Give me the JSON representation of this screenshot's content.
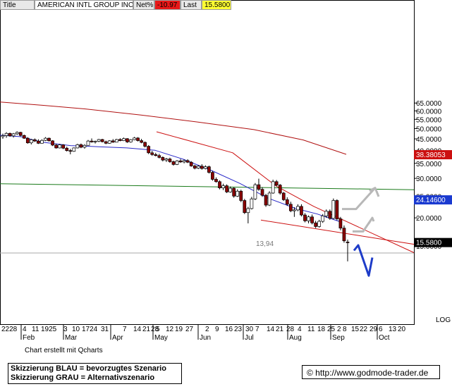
{
  "header": {
    "title_label": "Title",
    "company": "AMERICAN INTL GROUP INC",
    "net_label": "Net%",
    "net_value": "-10.97",
    "last_label": "Last",
    "last_value": "15.5800"
  },
  "footer": {
    "credit": "Chart erstellt mit Qcharts",
    "legend_blue": "Skizzierung BLAU = bevorzugtes Szenario",
    "legend_grey": "Skizzierung GRAU = Alternativszenario",
    "url": "© http://www.godmode-trader.de"
  },
  "colors": {
    "up": "#ffffff",
    "down": "#8b0000",
    "ma_blue": "#2828c8",
    "ma_red": "#b01010",
    "trend_red": "#cc1010",
    "support_green": "#1a7a1a",
    "scenario_blue": "#1e3cc8",
    "scenario_grey": "#b8b8b8",
    "tag_red": "#cc1010",
    "tag_blue": "#1a3ad0",
    "tag_black": "#000000"
  },
  "chart_data": {
    "type": "candlestick",
    "scale": "log",
    "ylabel_note": "LOG",
    "y_ticks": [
      "65.0000",
      "60.0000",
      "55.0000",
      "50.0000",
      "45.0000",
      "40.0000",
      "35.0000",
      "30.0000",
      "25.0000",
      "20.0000",
      "15.0000"
    ],
    "x_day_ticks": [
      "2228",
      "4",
      "11",
      "1925",
      "3",
      "10",
      "1724",
      "31",
      "7",
      "14",
      "21",
      "28",
      "5",
      "12",
      "19",
      "27",
      "2",
      "9",
      "16",
      "23",
      "30",
      "7",
      "14",
      "21",
      "28",
      "4",
      "11",
      "18",
      "25",
      "2",
      "8",
      "15",
      "22",
      "29",
      "6",
      "13",
      "20"
    ],
    "x_month_labels": [
      "Feb",
      "Mar",
      "Apr",
      "May",
      "Jun",
      "Jul",
      "Aug",
      "Sep",
      "Oct"
    ],
    "price_tags": [
      {
        "label": "38.38053",
        "value": 38.38053,
        "color": "red"
      },
      {
        "label": "24.14600",
        "value": 24.146,
        "color": "blue"
      },
      {
        "label": "15.5800",
        "value": 15.58,
        "color": "black"
      }
    ],
    "annotation": {
      "label": "13,94",
      "value": 13.94
    },
    "moving_average_200": [
      [
        0,
        65.7
      ],
      [
        60,
        63.5
      ],
      [
        120,
        61.2
      ],
      [
        200,
        57.5
      ],
      [
        280,
        53.5
      ],
      [
        360,
        49.5
      ],
      [
        430,
        44.5
      ],
      [
        491,
        38.4
      ]
    ],
    "moving_average_50": [
      [
        0,
        46.7
      ],
      [
        30,
        46.0
      ],
      [
        60,
        43.5
      ],
      [
        100,
        42.0
      ],
      [
        140,
        41.5
      ],
      [
        180,
        41.0
      ],
      [
        220,
        40.0
      ],
      [
        260,
        36.5
      ],
      [
        300,
        32.5
      ],
      [
        340,
        28.5
      ],
      [
        380,
        24.5
      ],
      [
        420,
        22.0
      ],
      [
        450,
        20.8
      ],
      [
        470,
        19.8
      ],
      [
        485,
        19.1
      ]
    ],
    "resistance_line": [
      [
        222,
        48.4
      ],
      [
        330,
        39.0
      ],
      [
        391,
        27.8
      ],
      [
        445,
        22.5
      ],
      [
        587,
        14.0
      ]
    ],
    "support_line": [
      [
        370,
        19.55
      ],
      [
        587,
        15.25
      ]
    ],
    "horizontal_green": [
      [
        0,
        28.4
      ],
      [
        587,
        26.7
      ]
    ],
    "scenario_blue": [
      [
        502,
        14.3
      ],
      [
        508,
        15.1
      ],
      [
        523,
        11.05
      ],
      [
        528,
        13.3
      ]
    ],
    "scenario_grey": [
      [
        500,
        17.4
      ],
      [
        515,
        17.4
      ],
      [
        528,
        20.0
      ],
      [
        523,
        18.9
      ],
      [
        528,
        20.0
      ],
      [
        530,
        19.3
      ]
    ],
    "scenario_grey_2": [
      [
        485,
        21.9
      ],
      [
        505,
        21.9
      ],
      [
        532,
        27.2
      ],
      [
        525,
        26.5
      ],
      [
        532,
        27.2
      ],
      [
        537,
        24.9
      ]
    ],
    "candles": [
      {
        "o": 46.0,
        "h": 47.5,
        "l": 45.0,
        "c": 46.5
      },
      {
        "o": 46.5,
        "h": 48.2,
        "l": 45.5,
        "c": 47.6
      },
      {
        "o": 47.6,
        "h": 48.0,
        "l": 46.0,
        "c": 46.4
      },
      {
        "o": 46.4,
        "h": 47.8,
        "l": 45.6,
        "c": 47.4
      },
      {
        "o": 47.4,
        "h": 48.6,
        "l": 46.8,
        "c": 48.1
      },
      {
        "o": 48.1,
        "h": 48.4,
        "l": 46.2,
        "c": 46.6
      },
      {
        "o": 46.6,
        "h": 47.0,
        "l": 45.0,
        "c": 45.3
      },
      {
        "o": 45.3,
        "h": 45.8,
        "l": 42.8,
        "c": 43.2
      },
      {
        "o": 43.2,
        "h": 45.0,
        "l": 42.5,
        "c": 44.6
      },
      {
        "o": 44.6,
        "h": 45.2,
        "l": 43.6,
        "c": 44.0
      },
      {
        "o": 44.0,
        "h": 44.8,
        "l": 42.7,
        "c": 43.0
      },
      {
        "o": 43.0,
        "h": 44.8,
        "l": 42.9,
        "c": 44.3
      },
      {
        "o": 44.3,
        "h": 45.8,
        "l": 44.0,
        "c": 45.3
      },
      {
        "o": 45.3,
        "h": 45.6,
        "l": 43.8,
        "c": 44.1
      },
      {
        "o": 44.1,
        "h": 44.4,
        "l": 41.8,
        "c": 42.2
      },
      {
        "o": 42.2,
        "h": 42.8,
        "l": 40.7,
        "c": 41.0
      },
      {
        "o": 41.0,
        "h": 42.7,
        "l": 40.8,
        "c": 42.3
      },
      {
        "o": 42.3,
        "h": 42.6,
        "l": 40.5,
        "c": 40.9
      },
      {
        "o": 40.9,
        "h": 41.5,
        "l": 39.5,
        "c": 39.9
      },
      {
        "o": 39.9,
        "h": 40.6,
        "l": 38.4,
        "c": 39.6
      },
      {
        "o": 39.6,
        "h": 41.2,
        "l": 39.4,
        "c": 41.0
      },
      {
        "o": 41.0,
        "h": 42.8,
        "l": 40.8,
        "c": 42.4
      },
      {
        "o": 42.4,
        "h": 42.9,
        "l": 40.9,
        "c": 41.3
      },
      {
        "o": 41.3,
        "h": 42.6,
        "l": 40.7,
        "c": 42.1
      },
      {
        "o": 42.1,
        "h": 44.5,
        "l": 42.0,
        "c": 44.0
      },
      {
        "o": 44.0,
        "h": 45.2,
        "l": 43.3,
        "c": 43.6
      },
      {
        "o": 43.6,
        "h": 44.2,
        "l": 42.9,
        "c": 43.9
      },
      {
        "o": 43.9,
        "h": 45.0,
        "l": 43.5,
        "c": 44.7
      },
      {
        "o": 44.7,
        "h": 45.0,
        "l": 43.4,
        "c": 43.7
      },
      {
        "o": 43.7,
        "h": 44.2,
        "l": 42.6,
        "c": 43.0
      },
      {
        "o": 43.0,
        "h": 44.4,
        "l": 42.8,
        "c": 44.1
      },
      {
        "o": 44.1,
        "h": 44.9,
        "l": 43.2,
        "c": 43.5
      },
      {
        "o": 43.5,
        "h": 45.0,
        "l": 43.4,
        "c": 44.7
      },
      {
        "o": 44.7,
        "h": 45.3,
        "l": 43.9,
        "c": 44.2
      },
      {
        "o": 44.2,
        "h": 45.6,
        "l": 44.0,
        "c": 45.1
      },
      {
        "o": 45.1,
        "h": 45.3,
        "l": 43.2,
        "c": 43.6
      },
      {
        "o": 43.6,
        "h": 44.9,
        "l": 43.3,
        "c": 44.6
      },
      {
        "o": 44.6,
        "h": 45.9,
        "l": 44.4,
        "c": 45.4
      },
      {
        "o": 45.4,
        "h": 45.8,
        "l": 43.8,
        "c": 44.2
      },
      {
        "o": 44.2,
        "h": 45.0,
        "l": 43.0,
        "c": 43.4
      },
      {
        "o": 43.4,
        "h": 43.8,
        "l": 41.2,
        "c": 41.7
      },
      {
        "o": 41.7,
        "h": 42.2,
        "l": 38.5,
        "c": 39.0
      },
      {
        "o": 39.0,
        "h": 39.8,
        "l": 37.8,
        "c": 38.3
      },
      {
        "o": 38.3,
        "h": 39.0,
        "l": 37.6,
        "c": 37.9
      },
      {
        "o": 37.9,
        "h": 38.6,
        "l": 36.8,
        "c": 37.2
      },
      {
        "o": 37.2,
        "h": 37.6,
        "l": 35.7,
        "c": 36.2
      },
      {
        "o": 36.2,
        "h": 37.0,
        "l": 35.5,
        "c": 36.6
      },
      {
        "o": 36.6,
        "h": 37.1,
        "l": 35.2,
        "c": 35.6
      },
      {
        "o": 35.6,
        "h": 36.0,
        "l": 34.2,
        "c": 34.6
      },
      {
        "o": 34.6,
        "h": 36.2,
        "l": 34.4,
        "c": 35.9
      },
      {
        "o": 35.9,
        "h": 36.6,
        "l": 35.2,
        "c": 35.5
      },
      {
        "o": 35.5,
        "h": 36.4,
        "l": 35.0,
        "c": 36.0
      },
      {
        "o": 36.0,
        "h": 36.5,
        "l": 35.1,
        "c": 35.4
      },
      {
        "o": 35.4,
        "h": 35.8,
        "l": 33.8,
        "c": 34.1
      },
      {
        "o": 34.1,
        "h": 34.5,
        "l": 32.9,
        "c": 33.3
      },
      {
        "o": 33.3,
        "h": 34.4,
        "l": 33.0,
        "c": 34.0
      },
      {
        "o": 34.0,
        "h": 34.7,
        "l": 32.8,
        "c": 33.2
      },
      {
        "o": 33.2,
        "h": 34.3,
        "l": 32.9,
        "c": 33.8
      },
      {
        "o": 33.8,
        "h": 34.2,
        "l": 31.5,
        "c": 31.9
      },
      {
        "o": 31.9,
        "h": 32.4,
        "l": 29.3,
        "c": 29.7
      },
      {
        "o": 29.7,
        "h": 30.3,
        "l": 28.7,
        "c": 29.0
      },
      {
        "o": 29.0,
        "h": 29.4,
        "l": 26.8,
        "c": 27.2
      },
      {
        "o": 27.2,
        "h": 28.4,
        "l": 26.6,
        "c": 27.8
      },
      {
        "o": 27.8,
        "h": 28.2,
        "l": 25.8,
        "c": 26.1
      },
      {
        "o": 26.1,
        "h": 27.6,
        "l": 25.9,
        "c": 27.1
      },
      {
        "o": 27.1,
        "h": 27.4,
        "l": 24.6,
        "c": 25.0
      },
      {
        "o": 25.0,
        "h": 26.8,
        "l": 24.8,
        "c": 26.3
      },
      {
        "o": 26.3,
        "h": 26.7,
        "l": 23.5,
        "c": 23.9
      },
      {
        "o": 23.9,
        "h": 24.3,
        "l": 20.8,
        "c": 21.1
      },
      {
        "o": 21.1,
        "h": 22.4,
        "l": 18.9,
        "c": 22.0
      },
      {
        "o": 22.0,
        "h": 24.8,
        "l": 21.8,
        "c": 24.3
      },
      {
        "o": 24.3,
        "h": 28.6,
        "l": 24.0,
        "c": 28.1
      },
      {
        "o": 28.1,
        "h": 29.9,
        "l": 26.4,
        "c": 26.8
      },
      {
        "o": 26.8,
        "h": 27.4,
        "l": 24.8,
        "c": 25.2
      },
      {
        "o": 25.2,
        "h": 25.6,
        "l": 22.4,
        "c": 22.8
      },
      {
        "o": 22.8,
        "h": 26.3,
        "l": 22.6,
        "c": 25.8
      },
      {
        "o": 25.8,
        "h": 29.6,
        "l": 25.6,
        "c": 29.0
      },
      {
        "o": 29.0,
        "h": 29.5,
        "l": 27.6,
        "c": 28.0
      },
      {
        "o": 28.0,
        "h": 28.3,
        "l": 25.4,
        "c": 25.8
      },
      {
        "o": 25.8,
        "h": 26.1,
        "l": 23.8,
        "c": 24.1
      },
      {
        "o": 24.1,
        "h": 24.7,
        "l": 22.6,
        "c": 23.0
      },
      {
        "o": 23.0,
        "h": 23.6,
        "l": 21.2,
        "c": 21.5
      },
      {
        "o": 21.5,
        "h": 22.3,
        "l": 20.2,
        "c": 21.7
      },
      {
        "o": 21.7,
        "h": 23.0,
        "l": 21.4,
        "c": 22.5
      },
      {
        "o": 22.5,
        "h": 23.0,
        "l": 20.3,
        "c": 20.6
      },
      {
        "o": 20.6,
        "h": 21.0,
        "l": 19.1,
        "c": 19.4
      },
      {
        "o": 19.4,
        "h": 20.5,
        "l": 18.9,
        "c": 20.2
      },
      {
        "o": 20.2,
        "h": 20.7,
        "l": 18.7,
        "c": 19.0
      },
      {
        "o": 19.0,
        "h": 19.4,
        "l": 18.0,
        "c": 18.3
      },
      {
        "o": 18.3,
        "h": 19.6,
        "l": 18.1,
        "c": 19.3
      },
      {
        "o": 19.3,
        "h": 20.8,
        "l": 19.0,
        "c": 20.4
      },
      {
        "o": 20.4,
        "h": 21.8,
        "l": 20.0,
        "c": 21.4
      },
      {
        "o": 21.4,
        "h": 21.8,
        "l": 19.6,
        "c": 19.9
      },
      {
        "o": 19.9,
        "h": 24.4,
        "l": 19.7,
        "c": 23.9
      },
      {
        "o": 23.9,
        "h": 24.2,
        "l": 19.5,
        "c": 19.8
      },
      {
        "o": 19.8,
        "h": 20.2,
        "l": 17.6,
        "c": 18.0
      },
      {
        "o": 18.0,
        "h": 18.5,
        "l": 15.5,
        "c": 15.8
      },
      {
        "o": 15.6,
        "h": 16.0,
        "l": 12.8,
        "c": 15.58
      }
    ]
  }
}
